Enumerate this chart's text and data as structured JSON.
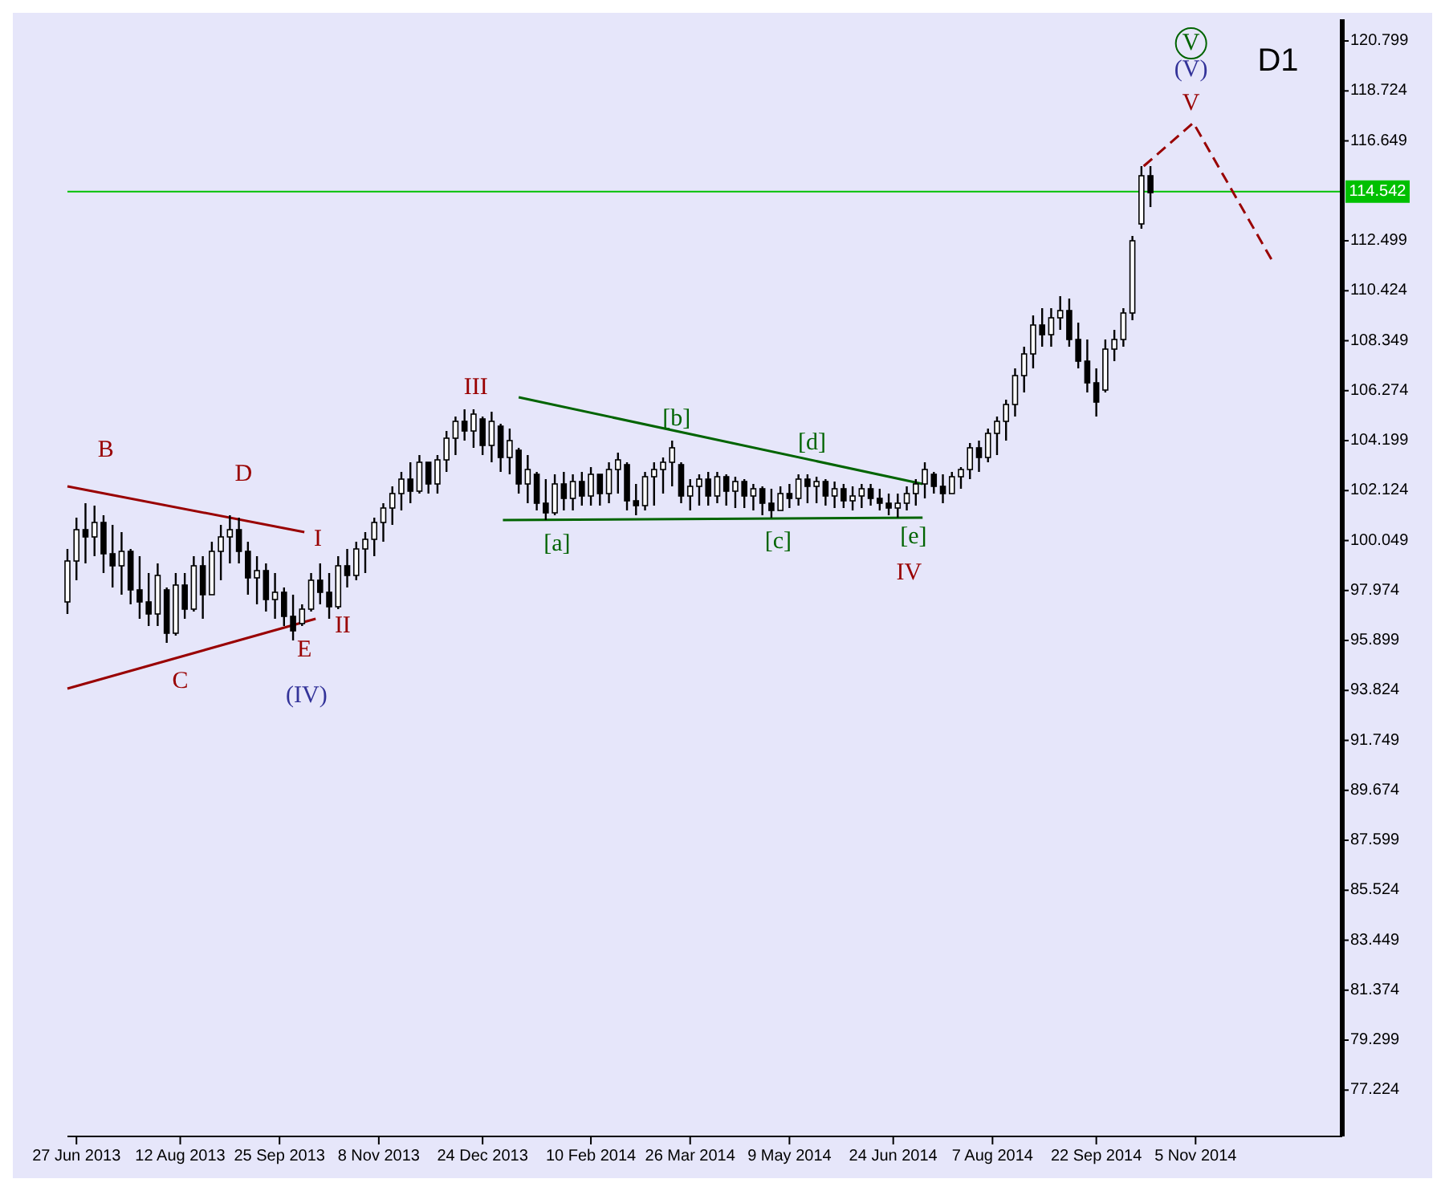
{
  "chart_data": {
    "type": "candlestick",
    "x": [
      "2013-06-23",
      "2013-06-27",
      "2013-07-01",
      "2013-07-05",
      "2013-07-09",
      "2013-07-13",
      "2013-07-17",
      "2013-07-21",
      "2013-07-25",
      "2013-07-29",
      "2013-08-02",
      "2013-08-06",
      "2013-08-10",
      "2013-08-14",
      "2013-08-18",
      "2013-08-22",
      "2013-08-26",
      "2013-08-30",
      "2013-09-03",
      "2013-09-07",
      "2013-09-11",
      "2013-09-15",
      "2013-09-19",
      "2013-09-23",
      "2013-09-27",
      "2013-10-01",
      "2013-10-05",
      "2013-10-09",
      "2013-10-13",
      "2013-10-17",
      "2013-10-21",
      "2013-10-25",
      "2013-10-29",
      "2013-11-02",
      "2013-11-06",
      "2013-11-10",
      "2013-11-14",
      "2013-11-18",
      "2013-11-22",
      "2013-11-26",
      "2013-11-30",
      "2013-12-04",
      "2013-12-08",
      "2013-12-12",
      "2013-12-16",
      "2013-12-20",
      "2013-12-24",
      "2013-12-28",
      "2014-01-01",
      "2014-01-05",
      "2014-01-09",
      "2014-01-13",
      "2014-01-17",
      "2014-01-21",
      "2014-01-25",
      "2014-01-29",
      "2014-02-02",
      "2014-02-06",
      "2014-02-10",
      "2014-02-14",
      "2014-02-18",
      "2014-02-22",
      "2014-02-26",
      "2014-03-02",
      "2014-03-06",
      "2014-03-10",
      "2014-03-14",
      "2014-03-18",
      "2014-03-22",
      "2014-03-26",
      "2014-03-30",
      "2014-04-03",
      "2014-04-07",
      "2014-04-11",
      "2014-04-15",
      "2014-04-19",
      "2014-04-23",
      "2014-04-27",
      "2014-05-01",
      "2014-05-05",
      "2014-05-09",
      "2014-05-13",
      "2014-05-17",
      "2014-05-21",
      "2014-05-25",
      "2014-05-29",
      "2014-06-02",
      "2014-06-06",
      "2014-06-10",
      "2014-06-14",
      "2014-06-18",
      "2014-06-22",
      "2014-06-26",
      "2014-06-30",
      "2014-07-04",
      "2014-07-08",
      "2014-07-12",
      "2014-07-16",
      "2014-07-20",
      "2014-07-24",
      "2014-07-28",
      "2014-08-01",
      "2014-08-05",
      "2014-08-09",
      "2014-08-13",
      "2014-08-17",
      "2014-08-21",
      "2014-08-25",
      "2014-08-29",
      "2014-09-02",
      "2014-09-06",
      "2014-09-10",
      "2014-09-14",
      "2014-09-18",
      "2014-09-22",
      "2014-09-26",
      "2014-09-30",
      "2014-10-04",
      "2014-10-08",
      "2014-10-12",
      "2014-10-16"
    ],
    "ohlc": [
      [
        97.5,
        99.7,
        97.0,
        99.2
      ],
      [
        99.2,
        101.0,
        98.4,
        100.5
      ],
      [
        100.5,
        101.6,
        99.1,
        100.2
      ],
      [
        100.2,
        101.5,
        99.4,
        100.8
      ],
      [
        100.8,
        101.1,
        98.7,
        99.5
      ],
      [
        99.5,
        100.7,
        98.1,
        99.0
      ],
      [
        99.0,
        100.4,
        97.8,
        99.6
      ],
      [
        99.6,
        99.7,
        97.4,
        98.0
      ],
      [
        98.0,
        99.4,
        96.8,
        97.5
      ],
      [
        97.5,
        98.7,
        96.5,
        97.0
      ],
      [
        97.0,
        99.1,
        96.5,
        98.6
      ],
      [
        98.0,
        98.1,
        95.8,
        96.2
      ],
      [
        96.2,
        98.7,
        96.1,
        98.2
      ],
      [
        98.2,
        98.7,
        96.8,
        97.2
      ],
      [
        97.2,
        99.4,
        97.1,
        99.0
      ],
      [
        99.0,
        99.4,
        96.8,
        97.8
      ],
      [
        97.8,
        100.0,
        97.8,
        99.6
      ],
      [
        99.6,
        100.7,
        98.4,
        100.2
      ],
      [
        100.2,
        101.1,
        99.1,
        100.5
      ],
      [
        100.5,
        101.0,
        99.1,
        99.6
      ],
      [
        99.6,
        100.0,
        97.8,
        98.5
      ],
      [
        98.5,
        99.4,
        97.4,
        98.8
      ],
      [
        98.8,
        99.1,
        97.1,
        97.6
      ],
      [
        97.6,
        98.7,
        96.8,
        97.9
      ],
      [
        97.9,
        98.1,
        96.5,
        96.9
      ],
      [
        96.9,
        97.8,
        95.9,
        96.3
      ],
      [
        96.6,
        97.4,
        96.5,
        97.2
      ],
      [
        97.2,
        98.7,
        97.1,
        98.4
      ],
      [
        98.4,
        99.1,
        97.4,
        97.9
      ],
      [
        97.9,
        98.7,
        96.8,
        97.3
      ],
      [
        97.3,
        99.4,
        97.2,
        99.0
      ],
      [
        99.0,
        99.7,
        98.1,
        98.6
      ],
      [
        98.6,
        100.0,
        98.4,
        99.7
      ],
      [
        99.7,
        100.4,
        98.7,
        100.1
      ],
      [
        100.1,
        101.0,
        99.4,
        100.8
      ],
      [
        100.8,
        101.6,
        100.0,
        101.4
      ],
      [
        101.4,
        102.3,
        100.7,
        102.0
      ],
      [
        102.0,
        102.9,
        101.3,
        102.6
      ],
      [
        102.6,
        103.3,
        101.6,
        102.1
      ],
      [
        102.1,
        103.6,
        102.0,
        103.3
      ],
      [
        103.3,
        103.3,
        102.0,
        102.4
      ],
      [
        102.4,
        103.6,
        102.0,
        103.4
      ],
      [
        103.4,
        104.6,
        102.9,
        104.3
      ],
      [
        104.3,
        105.2,
        103.6,
        105.0
      ],
      [
        105.0,
        105.5,
        104.2,
        104.6
      ],
      [
        104.6,
        105.5,
        103.9,
        105.3
      ],
      [
        105.1,
        105.2,
        103.6,
        104.0
      ],
      [
        104.0,
        105.4,
        103.3,
        105.0
      ],
      [
        104.8,
        104.9,
        102.9,
        103.5
      ],
      [
        103.5,
        104.7,
        102.8,
        104.2
      ],
      [
        103.8,
        103.9,
        102.0,
        102.4
      ],
      [
        102.4,
        103.6,
        101.6,
        103.0
      ],
      [
        102.8,
        102.9,
        101.3,
        101.6
      ],
      [
        101.6,
        102.6,
        100.9,
        101.2
      ],
      [
        101.2,
        102.8,
        101.1,
        102.4
      ],
      [
        102.4,
        102.9,
        101.3,
        101.8
      ],
      [
        101.8,
        102.8,
        101.3,
        102.5
      ],
      [
        102.5,
        102.9,
        101.5,
        101.9
      ],
      [
        101.9,
        103.1,
        101.5,
        102.8
      ],
      [
        102.8,
        102.8,
        101.5,
        102.0
      ],
      [
        102.0,
        103.3,
        101.6,
        103.0
      ],
      [
        103.0,
        103.7,
        102.0,
        103.4
      ],
      [
        103.2,
        103.3,
        101.3,
        101.7
      ],
      [
        101.7,
        102.4,
        101.1,
        101.5
      ],
      [
        101.5,
        102.9,
        101.3,
        102.7
      ],
      [
        102.7,
        103.3,
        101.5,
        103.0
      ],
      [
        103.0,
        103.5,
        102.0,
        103.3
      ],
      [
        103.3,
        104.2,
        102.3,
        103.9
      ],
      [
        103.2,
        103.3,
        101.6,
        101.9
      ],
      [
        101.9,
        102.6,
        101.3,
        102.3
      ],
      [
        102.3,
        102.8,
        101.5,
        102.6
      ],
      [
        102.6,
        102.9,
        101.5,
        101.9
      ],
      [
        101.9,
        102.9,
        101.6,
        102.7
      ],
      [
        102.7,
        102.8,
        101.5,
        102.1
      ],
      [
        102.1,
        102.7,
        101.4,
        102.5
      ],
      [
        102.5,
        102.6,
        101.4,
        101.9
      ],
      [
        101.9,
        102.4,
        101.3,
        102.2
      ],
      [
        102.2,
        102.3,
        101.1,
        101.6
      ],
      [
        101.6,
        102.2,
        101.0,
        101.3
      ],
      [
        101.3,
        102.3,
        101.3,
        102.0
      ],
      [
        102.0,
        102.4,
        101.4,
        101.8
      ],
      [
        101.8,
        102.8,
        101.5,
        102.6
      ],
      [
        102.6,
        102.8,
        101.6,
        102.3
      ],
      [
        102.3,
        102.7,
        101.6,
        102.5
      ],
      [
        102.5,
        102.6,
        101.5,
        101.9
      ],
      [
        101.9,
        102.5,
        101.4,
        102.2
      ],
      [
        102.2,
        102.4,
        101.4,
        101.7
      ],
      [
        101.7,
        102.3,
        101.3,
        101.9
      ],
      [
        101.9,
        102.4,
        101.4,
        102.2
      ],
      [
        102.2,
        102.4,
        101.5,
        101.8
      ],
      [
        101.8,
        102.2,
        101.3,
        101.6
      ],
      [
        101.6,
        102.0,
        101.1,
        101.4
      ],
      [
        101.4,
        102.0,
        101.0,
        101.6
      ],
      [
        101.6,
        102.3,
        101.3,
        102.0
      ],
      [
        102.0,
        102.6,
        101.5,
        102.4
      ],
      [
        102.4,
        103.3,
        101.8,
        103.0
      ],
      [
        102.8,
        102.9,
        102.0,
        102.3
      ],
      [
        102.3,
        102.8,
        101.6,
        102.0
      ],
      [
        102.0,
        102.9,
        102.0,
        102.7
      ],
      [
        102.7,
        103.1,
        102.2,
        103.0
      ],
      [
        103.0,
        104.1,
        102.6,
        103.9
      ],
      [
        103.9,
        104.2,
        102.9,
        103.5
      ],
      [
        103.5,
        104.7,
        103.3,
        104.5
      ],
      [
        104.5,
        105.2,
        103.6,
        105.0
      ],
      [
        105.0,
        105.9,
        104.2,
        105.7
      ],
      [
        105.7,
        107.2,
        105.2,
        106.9
      ],
      [
        106.9,
        108.1,
        106.2,
        107.8
      ],
      [
        107.8,
        109.4,
        107.2,
        109.0
      ],
      [
        109.0,
        109.7,
        108.1,
        108.6
      ],
      [
        108.6,
        109.7,
        108.1,
        109.3
      ],
      [
        109.3,
        110.2,
        108.8,
        109.6
      ],
      [
        109.6,
        110.1,
        108.1,
        108.4
      ],
      [
        108.4,
        109.1,
        107.2,
        107.5
      ],
      [
        107.5,
        108.4,
        106.2,
        106.6
      ],
      [
        106.6,
        107.2,
        105.2,
        105.8
      ],
      [
        106.3,
        108.4,
        106.2,
        108.0
      ],
      [
        108.0,
        108.8,
        107.5,
        108.4
      ],
      [
        108.4,
        109.7,
        108.1,
        109.5
      ],
      [
        109.5,
        112.7,
        109.2,
        112.5
      ],
      [
        113.2,
        115.6,
        113.0,
        115.2
      ],
      [
        115.2,
        115.6,
        113.9,
        114.5
      ]
    ],
    "color": "#000000",
    "series": [
      {
        "type": "line",
        "x": [
          "2013-06-23",
          "2013-10-06"
        ],
        "values": [
          102.3,
          100.4
        ],
        "color": "#990000",
        "line_style": "solid"
      },
      {
        "type": "line",
        "x": [
          "2013-06-23",
          "2013-10-11"
        ],
        "values": [
          93.9,
          96.8
        ],
        "color": "#990000",
        "line_style": "solid"
      },
      {
        "type": "line",
        "x": [
          "2014-01-09",
          "2014-07-07"
        ],
        "values": [
          106.0,
          102.4
        ],
        "color": "#006400",
        "line_style": "solid"
      },
      {
        "type": "line",
        "x": [
          "2014-01-02",
          "2014-07-07"
        ],
        "values": [
          100.9,
          101.0
        ],
        "color": "#006400",
        "line_style": "solid"
      },
      {
        "type": "line",
        "x": [
          "2014-10-13",
          "2014-11-04",
          "2014-12-10"
        ],
        "values": [
          115.6,
          117.4,
          111.5
        ],
        "color": "#990000",
        "line_style": "dashed"
      }
    ],
    "ref_lines": [
      {
        "axis": "y",
        "value": 114.542,
        "label": "114.542",
        "color": "#00c000"
      }
    ],
    "annotations": [
      "B",
      "D",
      "I",
      "C",
      "E",
      "II",
      "(IV)",
      "III",
      "[a]",
      "[b]",
      "[c]",
      "[d]",
      "[e]",
      "IV",
      "V",
      "(V)",
      "V",
      "D1"
    ],
    "xlim": [
      "2013-06-23",
      "2015-01-09"
    ],
    "xticks": [
      {
        "value": "2013-06-27",
        "label": "27 Jun 2013"
      },
      {
        "value": "2013-08-12",
        "label": "12 Aug 2013"
      },
      {
        "value": "2013-09-25",
        "label": "25 Sep 2013"
      },
      {
        "value": "2013-11-08",
        "label": "8 Nov 2013"
      },
      {
        "value": "2013-12-24",
        "label": "24 Dec 2013"
      },
      {
        "value": "2014-02-10",
        "label": "10 Feb 2014"
      },
      {
        "value": "2014-03-26",
        "label": "26 Mar 2014"
      },
      {
        "value": "2014-05-09",
        "label": "9 May 2014"
      },
      {
        "value": "2014-06-24",
        "label": "24 Jun 2014"
      },
      {
        "value": "2014-08-07",
        "label": "7 Aug 2014"
      },
      {
        "value": "2014-09-22",
        "label": "22 Sep 2014"
      },
      {
        "value": "2014-11-05",
        "label": "5 Nov 2014"
      }
    ],
    "ylim": [
      75.3,
      121.7
    ],
    "yticks": [
      120.799,
      118.724,
      116.649,
      112.499,
      110.424,
      108.349,
      106.274,
      104.199,
      102.124,
      100.049,
      97.974,
      95.899,
      93.824,
      91.749,
      89.674,
      87.599,
      85.524,
      83.449,
      81.374,
      79.299,
      77.224
    ],
    "grid": false
  }
}
